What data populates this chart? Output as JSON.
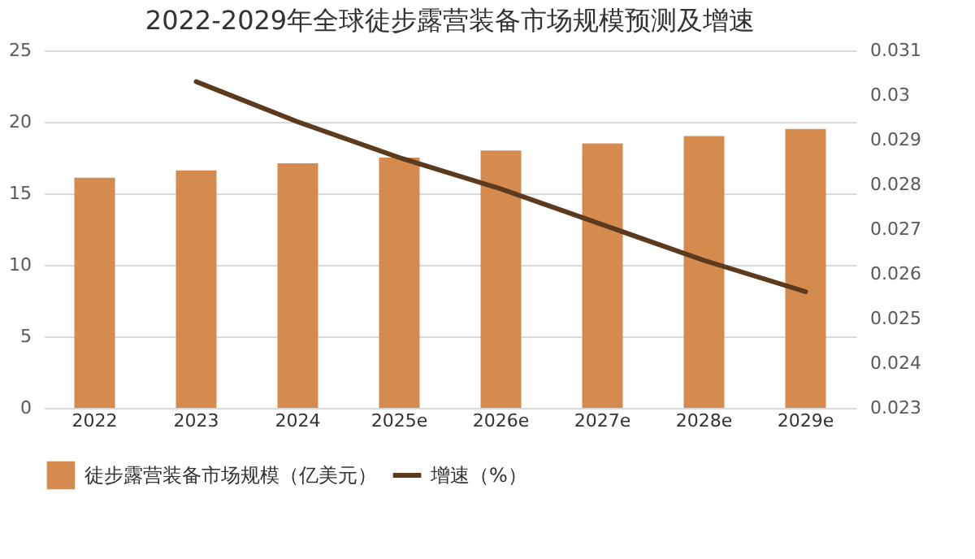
{
  "chart_data": {
    "type": "bar",
    "title": "2022-2029年全球徒步露营装备市场规模预测及增速",
    "categories": [
      "2022",
      "2023",
      "2024",
      "2025e",
      "2026e",
      "2027e",
      "2028e",
      "2029e"
    ],
    "series": [
      {
        "name": "徒步露营装备市场规模（亿美元）",
        "color": "#d58b4d",
        "values": [
          16.1,
          16.6,
          17.1,
          17.5,
          18.0,
          18.5,
          19.0,
          19.5
        ]
      },
      {
        "name": "增速（%）",
        "type": "line",
        "axis": "y2",
        "color": "#5b3a1e",
        "values": [
          null,
          0.0303,
          0.0294,
          0.0286,
          0.0279,
          0.0271,
          0.0263,
          0.0256
        ]
      }
    ],
    "ylim": [
      0,
      25
    ],
    "yticks": [
      0,
      5,
      10,
      15,
      20,
      25
    ],
    "y2lim": [
      0.023,
      0.031
    ],
    "y2ticks": [
      0.023,
      0.024,
      0.025,
      0.026,
      0.027,
      0.028,
      0.029,
      {
        "value": 0.03,
        "label": "0.03"
      },
      0.031
    ],
    "grid": "y",
    "legend": "bottom",
    "marker": "none",
    "line_style": "solid"
  }
}
